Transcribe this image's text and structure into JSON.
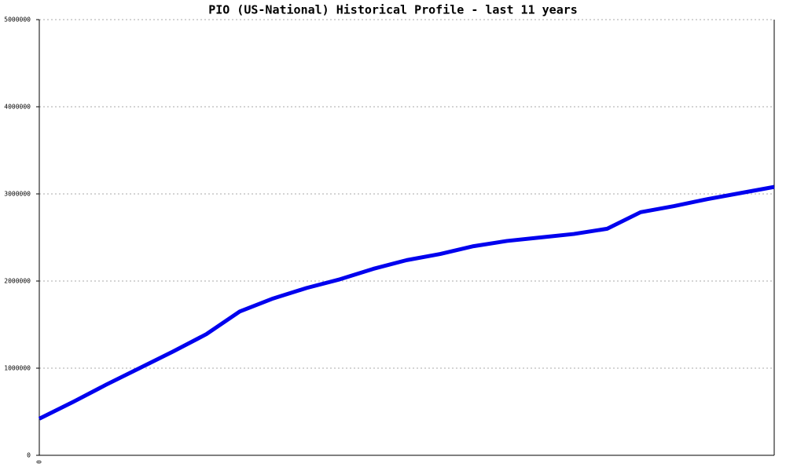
{
  "chart_data": {
    "type": "line",
    "title": "PIO (US-National) Historical Profile - last 11 years",
    "categories": [
      "0",
      null,
      null,
      null,
      null,
      null,
      null,
      null,
      null,
      null,
      null,
      null,
      null,
      null,
      null,
      null,
      null,
      null,
      null,
      null,
      null,
      null,
      null
    ],
    "series": [
      {
        "name": "PIO",
        "color": "#0000ee",
        "values": [
          420000,
          610000,
          810000,
          1000000,
          1190000,
          1390000,
          1650000,
          1800000,
          1920000,
          2020000,
          2140000,
          2240000,
          2310000,
          2400000,
          2460000,
          2500000,
          2540000,
          2600000,
          2790000,
          2860000,
          2940000,
          3010000,
          3080000
        ]
      }
    ],
    "ylim": [
      0,
      5000000
    ],
    "yticks": [
      0,
      1000000,
      2000000,
      3000000,
      4000000,
      5000000
    ],
    "grid": true
  }
}
